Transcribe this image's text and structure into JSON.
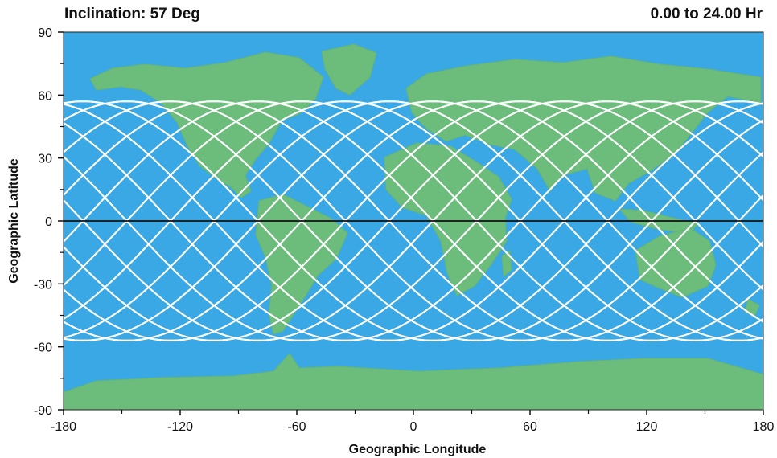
{
  "header": {
    "title": "Inclination: 57 Deg",
    "time_range": "0.00 to 24.00 Hr"
  },
  "chart_data": {
    "type": "map",
    "title": "Inclination: 57 Deg",
    "subtitle": "0.00 to 24.00 Hr",
    "xlabel": "Geographic Longitude",
    "ylabel": "Geographic Latitude",
    "xlim": [
      -180,
      180
    ],
    "ylim": [
      -90,
      90
    ],
    "xticks": [
      -180,
      -120,
      -60,
      0,
      60,
      120,
      180
    ],
    "yticks": [
      90,
      60,
      30,
      0,
      -30,
      -60,
      -90
    ],
    "xtick_labels": [
      "-180",
      "-120",
      "-60",
      "0",
      "60",
      "120",
      "180"
    ],
    "ytick_labels": [
      "90",
      "60",
      "30",
      "0",
      "-30",
      "-60",
      "-90"
    ],
    "inclination_deg": 57,
    "orbits_per_day": 16,
    "equator_latitude": 0,
    "colors": {
      "ocean": "#3aa8e4",
      "land": "#6cbd7c",
      "ground_track": "#ffffff",
      "equator": "#111111"
    }
  }
}
